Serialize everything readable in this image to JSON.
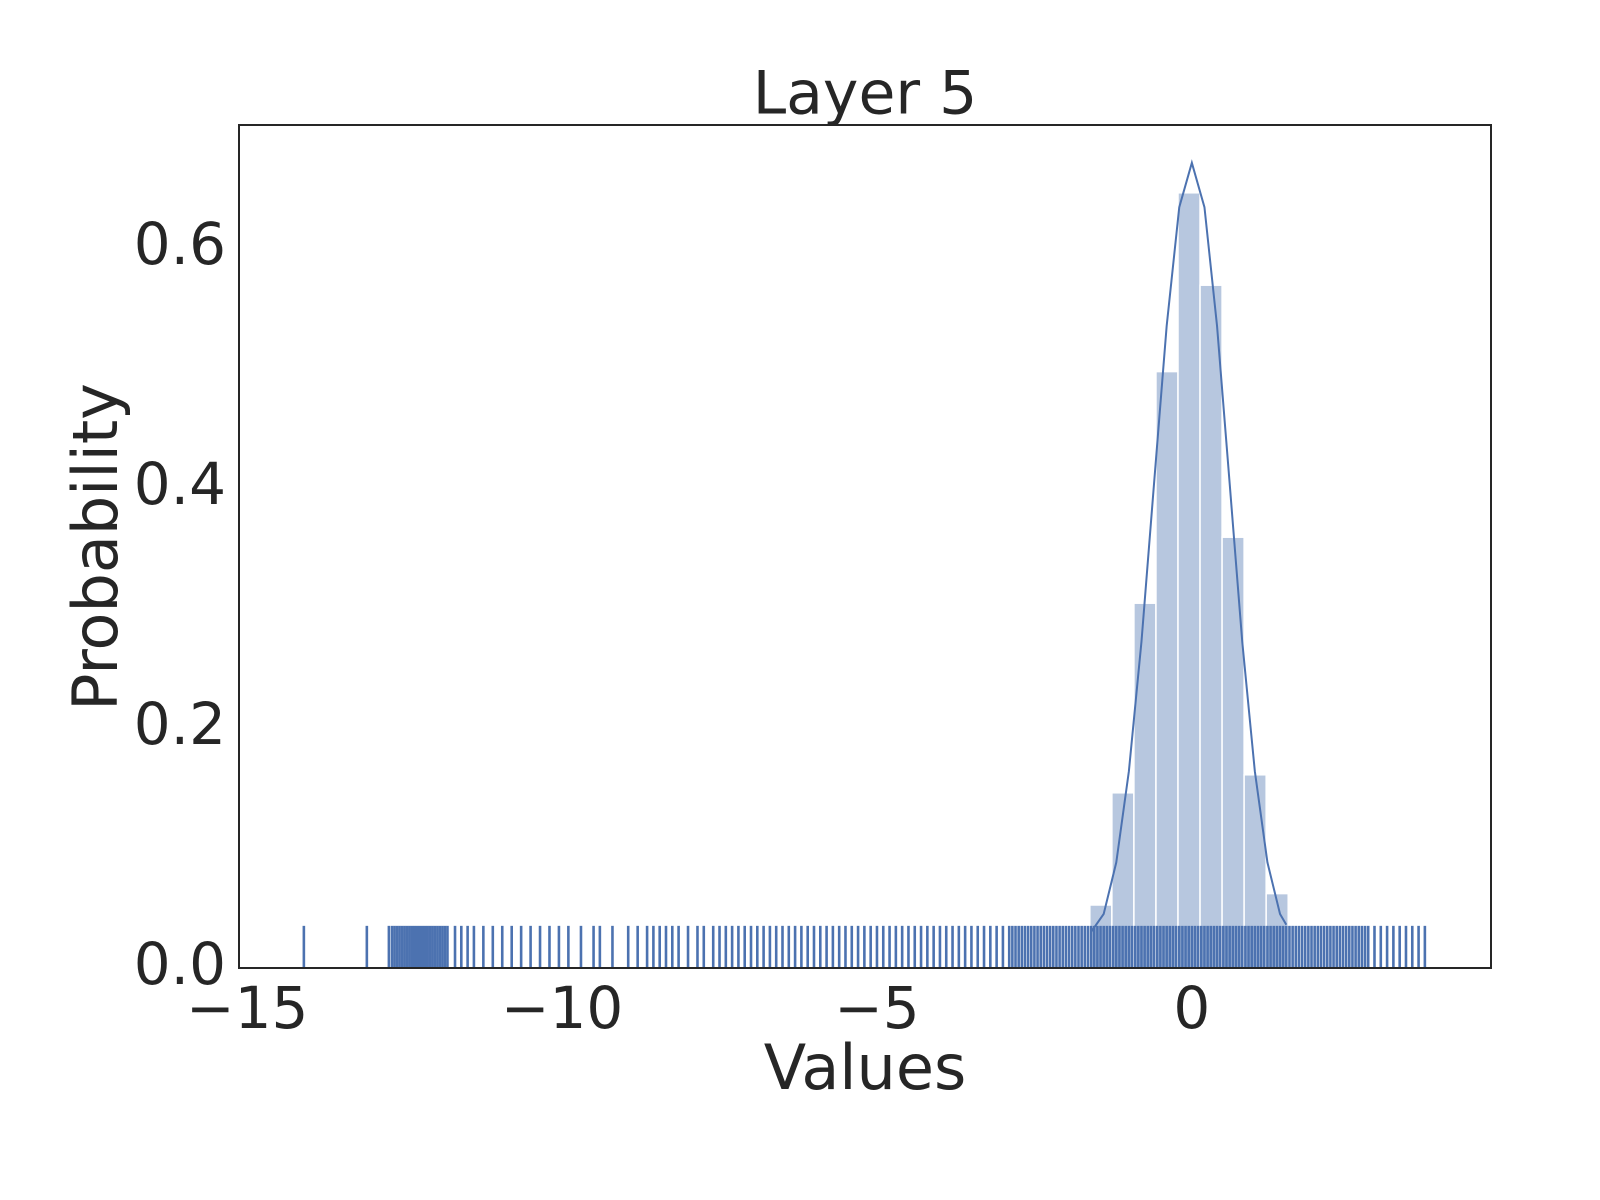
{
  "chart_data": {
    "type": "histogram",
    "title": "Layer 5",
    "xlabel": "Values",
    "ylabel": "Probability",
    "color": "#4c72b0",
    "bins": [
      -1.62,
      -1.27,
      -0.92,
      -0.57,
      -0.22,
      0.13,
      0.48,
      0.83,
      1.18,
      1.53
    ],
    "values": [
      0.0525,
      0.146,
      0.304,
      0.497,
      0.646,
      0.569,
      0.359,
      0.161,
      0.062
    ],
    "kde": {
      "x": [
        -1.6,
        -1.4,
        -1.2,
        -1.0,
        -0.8,
        -0.6,
        -0.4,
        -0.2,
        0,
        0.2,
        0.4,
        0.6,
        0.8,
        1.0,
        1.2,
        1.4,
        1.5
      ],
      "values": [
        0.03,
        0.045,
        0.088,
        0.164,
        0.272,
        0.404,
        0.535,
        0.634,
        0.671,
        0.634,
        0.535,
        0.404,
        0.272,
        0.164,
        0.088,
        0.045,
        0.036
      ]
    },
    "rug": [
      -14.1,
      -13.1,
      -12.75,
      -12.7,
      -12.66,
      -12.62,
      -12.58,
      -12.54,
      -12.5,
      -12.46,
      -12.42,
      -12.38,
      -12.34,
      -12.3,
      -12.26,
      -12.22,
      -12.18,
      -12.14,
      -12.1,
      -12.06,
      -12.02,
      -11.98,
      -11.94,
      -11.9,
      -11.86,
      -11.82,
      -11.7,
      -11.6,
      -11.5,
      -11.4,
      -11.25,
      -11.1,
      -10.95,
      -10.8,
      -10.65,
      -10.5,
      -10.35,
      -10.2,
      -10.05,
      -9.9,
      -9.7,
      -9.5,
      -9.4,
      -9.2,
      -8.95,
      -8.8,
      -8.65,
      -8.55,
      -8.45,
      -8.35,
      -8.25,
      -8.15,
      -8.0,
      -7.85,
      -7.75,
      -7.6,
      -7.5,
      -7.4,
      -7.3,
      -7.2,
      -7.1,
      -7.0,
      -6.9,
      -6.8,
      -6.7,
      -6.6,
      -6.5,
      -6.4,
      -6.3,
      -6.2,
      -6.1,
      -6.0,
      -5.9,
      -5.8,
      -5.7,
      -5.6,
      -5.5,
      -5.4,
      -5.3,
      -5.2,
      -5.1,
      -5.0,
      -4.9,
      -4.8,
      -4.7,
      -4.6,
      -4.5,
      -4.4,
      -4.3,
      -4.2,
      -4.1,
      -4.0,
      -3.9,
      -3.8,
      -3.7,
      -3.6,
      -3.5,
      -3.4,
      -3.3,
      -3.2,
      -3.1,
      -3.0,
      -2.9,
      -2.85,
      -2.8,
      -2.75,
      -2.7,
      -2.65,
      -2.6,
      -2.55,
      -2.5,
      -2.45,
      -2.4,
      -2.35,
      -2.3,
      -2.25,
      -2.2,
      -2.15,
      -2.1,
      -2.05,
      -2.0,
      -1.95,
      -1.9,
      -1.85,
      -1.8,
      -1.75,
      -1.7,
      -1.65,
      -1.6,
      -1.55,
      -1.5,
      -1.45,
      -1.4,
      -1.35,
      -1.3,
      -1.25,
      -1.2,
      -1.15,
      -1.1,
      -1.05,
      -1.0,
      -0.95,
      -0.9,
      -0.85,
      -0.8,
      -0.75,
      -0.7,
      -0.65,
      -0.6,
      -0.55,
      -0.5,
      -0.45,
      -0.4,
      -0.35,
      -0.3,
      -0.25,
      -0.2,
      -0.15,
      -0.1,
      -0.05,
      0,
      0.05,
      0.1,
      0.15,
      0.2,
      0.25,
      0.3,
      0.35,
      0.4,
      0.45,
      0.5,
      0.55,
      0.6,
      0.65,
      0.7,
      0.75,
      0.8,
      0.85,
      0.9,
      0.95,
      1.0,
      1.05,
      1.1,
      1.15,
      1.2,
      1.25,
      1.3,
      1.35,
      1.4,
      1.45,
      1.5,
      1.55,
      1.6,
      1.65,
      1.7,
      1.75,
      1.8,
      1.85,
      1.9,
      1.95,
      2.0,
      2.05,
      2.1,
      2.15,
      2.2,
      2.25,
      2.3,
      2.35,
      2.4,
      2.45,
      2.5,
      2.55,
      2.6,
      2.65,
      2.7,
      2.75,
      2.8,
      2.9,
      3.0,
      3.1,
      3.2,
      3.3,
      3.4,
      3.5,
      3.6,
      3.7
    ],
    "xlim": [
      -15.13,
      4.75
    ],
    "ylim": [
      0,
      0.7025
    ],
    "xticks": [
      {
        "value": -15,
        "label": "−15"
      },
      {
        "value": -10,
        "label": "−10"
      },
      {
        "value": -5,
        "label": "−5"
      },
      0
    ],
    "yticks": [
      {
        "value": 0,
        "label": "0.0"
      },
      0.2,
      0.4,
      0.6
    ]
  }
}
